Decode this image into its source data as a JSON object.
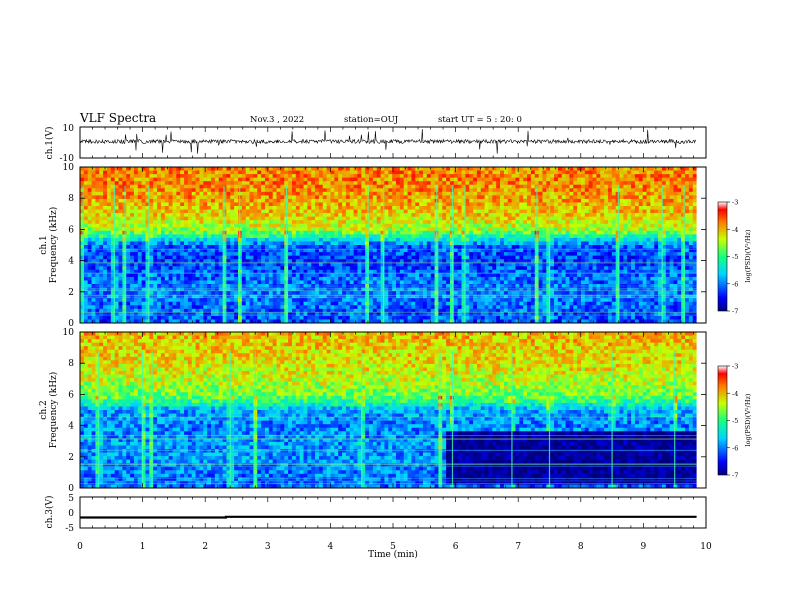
{
  "header": {
    "title": "VLF Spectra",
    "date": "Nov.3 , 2022",
    "station": "station=OUJ",
    "start_ut": "start UT = 5 : 20: 0"
  },
  "chart_data": [
    {
      "panel": "ch1_waveform",
      "type": "line",
      "ylabel": "ch.1(V)",
      "ylim": [
        -10,
        10
      ],
      "yticks": [
        "10",
        "-10"
      ],
      "baseline": 0,
      "xlim": [
        0,
        9.85
      ]
    },
    {
      "panel": "ch1_spectrogram",
      "type": "heatmap",
      "ylabel": "ch.1\nFrequency (kHz)",
      "ylim": [
        0,
        10
      ],
      "yticks": [
        "0",
        "2",
        "4",
        "6",
        "8",
        "10"
      ],
      "xlim": [
        0,
        9.85
      ],
      "colorbar": {
        "label": "log(PSD)(V²/Hz)",
        "range": [
          -7,
          -3
        ],
        "ticks": [
          "-3",
          "-4",
          "-5",
          "-6",
          "-7"
        ]
      },
      "intensity_profile": {
        "freq_khz": [
          0,
          1,
          2,
          3,
          4,
          5,
          5.5,
          6,
          7,
          8,
          9,
          10
        ],
        "level": [
          -6.2,
          -6.1,
          -6.0,
          -6.1,
          -6.3,
          -6.1,
          -5.2,
          -4.5,
          -4.1,
          -3.9,
          -3.8,
          -3.8
        ]
      },
      "vertical_events_min": [
        0.05,
        0.55,
        0.72,
        1.1,
        2.3,
        2.55,
        3.3,
        4.6,
        4.85,
        5.7,
        5.95,
        6.15,
        7.3,
        7.5,
        8.6,
        9.3,
        9.65
      ]
    },
    {
      "panel": "ch2_spectrogram",
      "type": "heatmap",
      "ylabel": "ch.2\nFrequency (kHz)",
      "ylim": [
        0,
        10
      ],
      "yticks": [
        "0",
        "2",
        "4",
        "6",
        "8",
        "10"
      ],
      "xlim": [
        0,
        9.85
      ],
      "colorbar": {
        "label": "log(PSD)(V²/Hz)",
        "range": [
          -7,
          -3
        ],
        "ticks": [
          "-3",
          "-4",
          "-5",
          "-6",
          "-7"
        ]
      },
      "intensity_profile": {
        "freq_khz": [
          0,
          1,
          2,
          3,
          4,
          5,
          5.5,
          6,
          7,
          8,
          9,
          10
        ],
        "level": [
          -6.1,
          -6.0,
          -5.9,
          -5.9,
          -6.0,
          -5.8,
          -5.1,
          -4.7,
          -4.4,
          -4.2,
          -4.1,
          -4.0
        ]
      },
      "dark_region": {
        "x_from": 5.85,
        "x_to": 9.85,
        "freq_from": 0.3,
        "freq_to": 3.6,
        "level": -6.9
      },
      "vertical_events_min": [
        0.3,
        1.0,
        1.15,
        2.4,
        2.8,
        4.5,
        5.75,
        5.95,
        6.9,
        7.5,
        8.5,
        9.5
      ]
    },
    {
      "panel": "ch3",
      "type": "line",
      "ylabel": "ch.3(V)",
      "ylim": [
        -5,
        5
      ],
      "yticks": [
        "5",
        "0",
        "-5"
      ],
      "x": [
        0,
        2.33,
        2.33,
        9.85
      ],
      "y": [
        -1.6,
        -1.6,
        -1.4,
        -1.4
      ],
      "xlim": [
        0,
        10
      ],
      "xticks": [
        "0",
        "1",
        "2",
        "3",
        "4",
        "5",
        "6",
        "7",
        "8",
        "9",
        "10"
      ],
      "xlabel": "Time (min)"
    }
  ]
}
